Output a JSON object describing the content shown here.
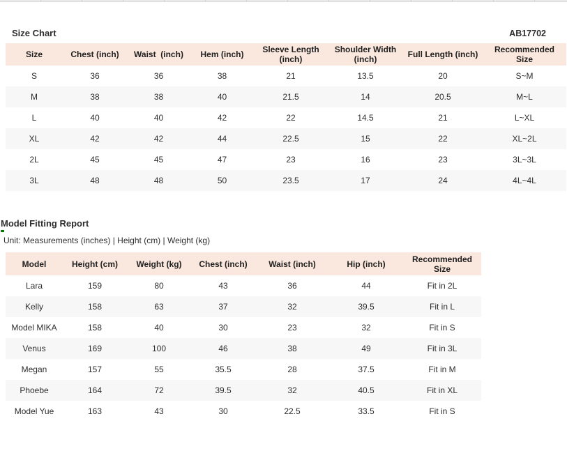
{
  "colors": {
    "table_header_bg": "#FAE7DD",
    "row_stripe": "#F7F7F7",
    "text": "#2E2E2E",
    "green_mark": "#008000",
    "top_strip": "#E9E9E9"
  },
  "size_chart": {
    "title": "Size Chart",
    "product_code": "AB17702",
    "columns": [
      "Size",
      "Chest (inch)",
      "Waist  (inch)",
      "Hem (inch)",
      "Sleeve Length (inch)",
      "Shoulder Width (inch)",
      "Full Length (inch)",
      "Recommended Size"
    ],
    "rows": [
      [
        "S",
        "36",
        "36",
        "38",
        "21",
        "13.5",
        "20",
        "S~M"
      ],
      [
        "M",
        "38",
        "38",
        "40",
        "21.5",
        "14",
        "20.5",
        "M~L"
      ],
      [
        "L",
        "40",
        "40",
        "42",
        "22",
        "14.5",
        "21",
        "L~XL"
      ],
      [
        "XL",
        "42",
        "42",
        "44",
        "22.5",
        "15",
        "22",
        "XL~2L"
      ],
      [
        "2L",
        "45",
        "45",
        "47",
        "23",
        "16",
        "23",
        "3L~3L"
      ],
      [
        "3L",
        "48",
        "48",
        "50",
        "23.5",
        "17",
        "24",
        "4L~4L"
      ]
    ]
  },
  "model_fitting_report": {
    "title": "Model Fitting Report",
    "unit_note": "Unit: Measurements (inches) | Height (cm) | Weight (kg)",
    "columns": [
      "Model",
      "Height (cm)",
      "Weight (kg)",
      "Chest (inch)",
      "Waist (inch)",
      "Hip (inch)",
      "Recommended Size"
    ],
    "rows": [
      [
        "Lara",
        "159",
        "80",
        "43",
        "36",
        "44",
        "Fit in 2L"
      ],
      [
        "Kelly",
        "158",
        "63",
        "37",
        "32",
        "39.5",
        "Fit in L"
      ],
      [
        "Model MIKA",
        "158",
        "40",
        "30",
        "23",
        "32",
        "Fit in S"
      ],
      [
        "Venus",
        "169",
        "100",
        "46",
        "38",
        "49",
        "Fit in 3L"
      ],
      [
        "Megan",
        "157",
        "55",
        "35.5",
        "28",
        "37.5",
        "Fit in M"
      ],
      [
        "Phoebe",
        "164",
        "72",
        "39.5",
        "32",
        "40.5",
        "Fit in XL"
      ],
      [
        "Model Yue",
        "163",
        "43",
        "30",
        "22.5",
        "33.5",
        "Fit in S"
      ]
    ]
  }
}
